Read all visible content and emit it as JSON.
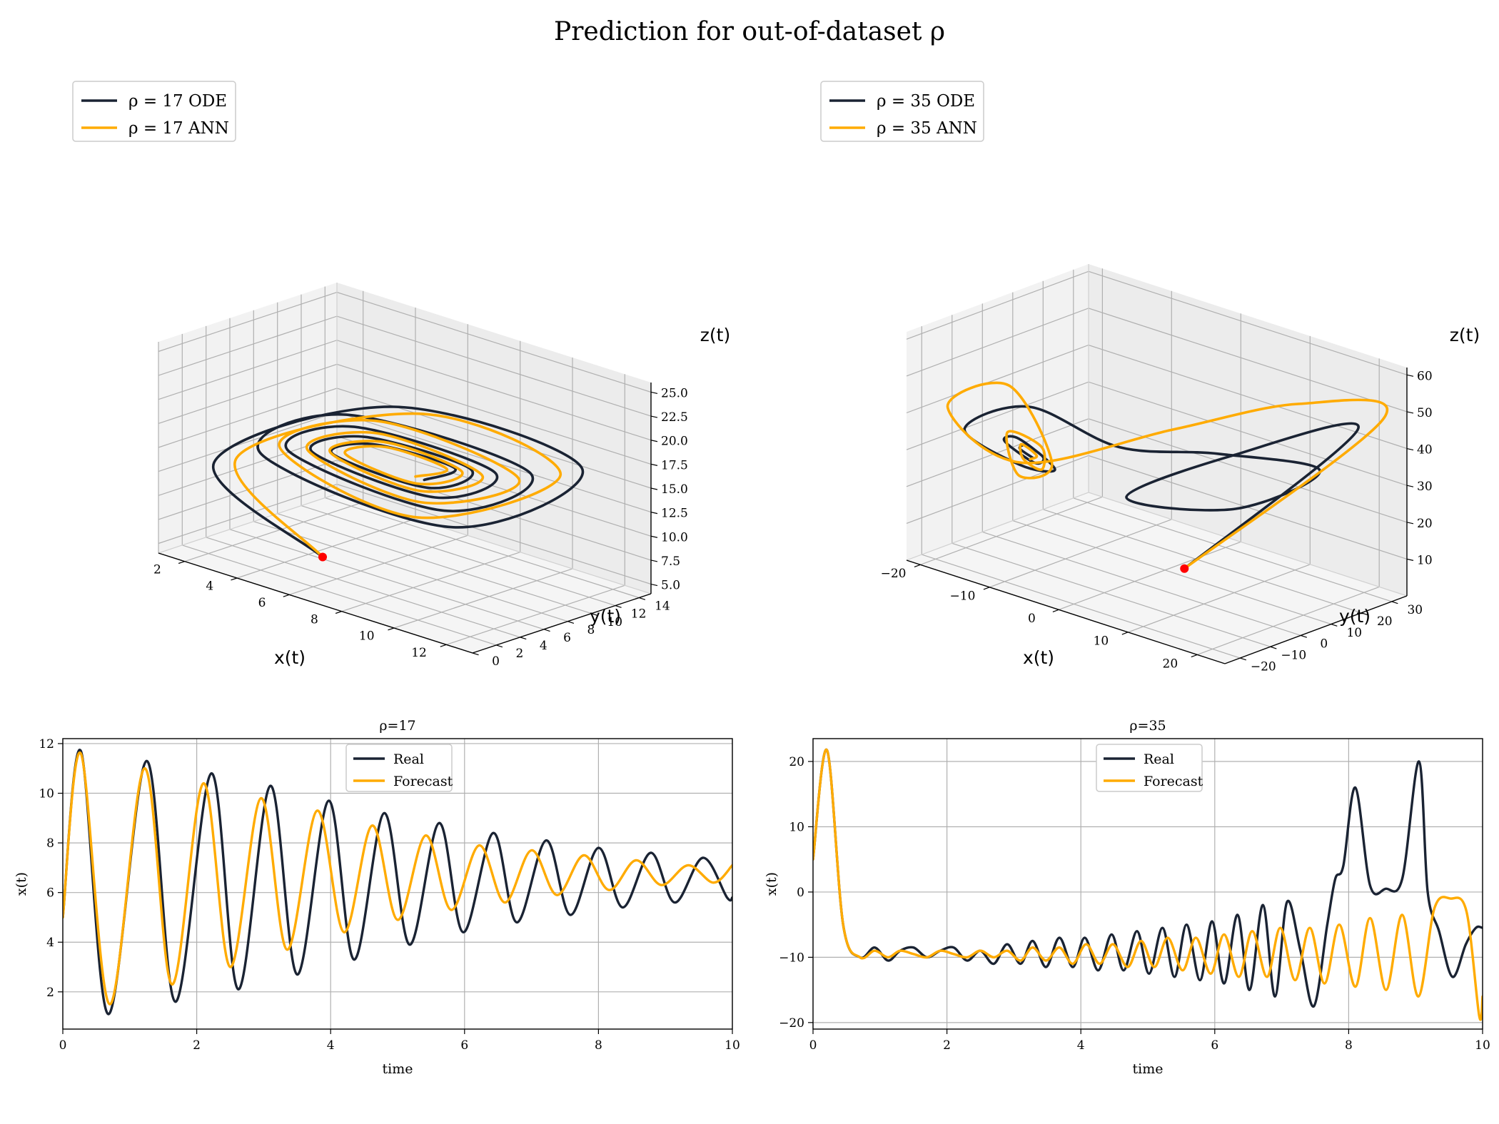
{
  "figure_title": "Prediction for out-of-dataset ρ",
  "colors": {
    "ode": "#1a2333",
    "ann": "#ffab00",
    "start_point": "#ff0000",
    "grid": "#b0b0b0"
  },
  "chart_data": [
    {
      "type": "line3d",
      "panel": "top-left",
      "title": "",
      "legend": [
        "ρ = 17 ODE",
        "ρ = 17 ANN"
      ],
      "legend_position": "top-left",
      "xlabel": "x(t)",
      "ylabel": "y(t)",
      "zlabel": "z(t)",
      "x_ticks": [
        "2",
        "4",
        "6",
        "8",
        "10",
        "12"
      ],
      "y_ticks": [
        "0",
        "2",
        "4",
        "6",
        "8",
        "10",
        "12",
        "14"
      ],
      "z_ticks": [
        "5.0",
        "7.5",
        "10.0",
        "12.5",
        "15.0",
        "17.5",
        "20.0",
        "22.5",
        "25.0"
      ],
      "xlim": [
        1,
        13
      ],
      "ylim": [
        0,
        15
      ],
      "zlim": [
        4,
        26
      ],
      "initial_point": [
        5,
        5,
        5
      ],
      "series": [
        {
          "name": "ρ = 17 ODE",
          "x": [
            5.0,
            2.4,
            6.3,
            11.5,
            8.9,
            3.6,
            5.0,
            10.2,
            8.6,
            4.2,
            5.3,
            9.3,
            8.2,
            4.8,
            5.7,
            8.7,
            7.9,
            5.3,
            6.0,
            8.3,
            7.7
          ],
          "y": [
            5.0,
            1.6,
            8.1,
            12.5,
            7.4,
            2.9,
            7.0,
            11.0,
            7.3,
            3.9,
            7.0,
            10.0,
            7.4,
            4.6,
            7.0,
            9.3,
            7.5,
            5.2,
            7.0,
            8.8,
            7.6
          ],
          "z": [
            5.0,
            14.0,
            20.5,
            16.8,
            10.5,
            15.4,
            19.0,
            15.8,
            12.0,
            15.8,
            18.0,
            15.5,
            13.0,
            15.9,
            17.3,
            15.6,
            13.7,
            15.9,
            16.8,
            15.6,
            14.3
          ]
        },
        {
          "name": "ρ = 17 ANN",
          "x": [
            5.0,
            2.9,
            7.0,
            11.0,
            8.0,
            3.9,
            5.8,
            10.0,
            8.0,
            4.6,
            5.9,
            9.0,
            7.8,
            5.2,
            6.2,
            8.5,
            7.6,
            5.6,
            6.3,
            8.1,
            7.5
          ],
          "y": [
            5.0,
            2.4,
            9.0,
            11.8,
            6.3,
            3.8,
            8.0,
            10.5,
            6.7,
            4.6,
            7.6,
            9.6,
            7.0,
            5.2,
            7.5,
            9.0,
            7.2,
            5.6,
            7.4,
            8.6,
            7.3
          ],
          "z": [
            5.0,
            14.6,
            20.0,
            16.0,
            11.2,
            16.0,
            18.6,
            15.2,
            12.6,
            16.0,
            17.6,
            15.1,
            13.5,
            16.0,
            17.0,
            15.3,
            14.0,
            16.0,
            16.6,
            15.4,
            14.6
          ]
        }
      ]
    },
    {
      "type": "line3d",
      "panel": "top-right",
      "title": "",
      "legend": [
        "ρ = 35 ODE",
        "ρ = 35 ANN"
      ],
      "legend_position": "top-left",
      "xlabel": "x(t)",
      "ylabel": "y(t)",
      "zlabel": "z(t)",
      "x_ticks": [
        "−20",
        "−10",
        "0",
        "10",
        "20"
      ],
      "y_ticks": [
        "−20",
        "−10",
        "0",
        "10",
        "20",
        "30"
      ],
      "z_ticks": [
        "10",
        "20",
        "30",
        "40",
        "50",
        "60"
      ],
      "xlim": [
        -22,
        24
      ],
      "ylim": [
        -25,
        35
      ],
      "zlim": [
        0,
        62
      ],
      "initial_point": [
        5,
        5,
        5
      ],
      "series": [
        {
          "name": "ρ = 35 ODE",
          "x": [
            5.0,
            20.0,
            12.0,
            1.0,
            8.0,
            18.0,
            12.0,
            0.0,
            -10.0,
            -18.0,
            -14.0,
            -8.0,
            -11.0,
            -14.0,
            -11.0,
            -9.0,
            -10.5,
            -12.0,
            -10.5
          ],
          "y": [
            5.0,
            28.0,
            5.0,
            -5.0,
            15.0,
            20.0,
            0.0,
            -5.0,
            -12.0,
            -15.0,
            -6.0,
            -8.0,
            -13.0,
            -11.0,
            -8.0,
            -9.5,
            -11.5,
            -10.5,
            -9.5
          ],
          "z": [
            5.0,
            45.0,
            40.0,
            25.0,
            20.0,
            35.0,
            42.0,
            38.0,
            45.0,
            35.0,
            25.0,
            28.0,
            36.0,
            33.0,
            28.0,
            31.0,
            34.0,
            32.0,
            30.0
          ]
        },
        {
          "name": "ρ = 35 ANN",
          "x": [
            5.0,
            22.0,
            14.0,
            2.0,
            -12.0,
            -20.0,
            -16.0,
            -8.0,
            -11.0,
            -14.0,
            -10.0,
            -9.0,
            -11.0,
            -12.0,
            -10.0,
            -10.5
          ],
          "y": [
            5.0,
            32.0,
            22.0,
            8.0,
            -10.0,
            -16.0,
            -5.0,
            -9.0,
            -13.0,
            -10.0,
            -8.0,
            -10.0,
            -11.5,
            -10.0,
            -9.5,
            -10.5
          ],
          "z": [
            5.0,
            48.0,
            50.0,
            40.0,
            28.0,
            40.0,
            45.0,
            30.0,
            26.0,
            35.0,
            33.0,
            28.0,
            30.0,
            33.0,
            31.0,
            30.0
          ]
        }
      ]
    },
    {
      "type": "line",
      "panel": "bottom-left",
      "title": "ρ=17",
      "xlabel": "time",
      "ylabel": "x(t)",
      "xlim": [
        0,
        10
      ],
      "ylim": [
        0.5,
        12.2
      ],
      "x_ticks": [
        "0",
        "2",
        "4",
        "6",
        "8",
        "10"
      ],
      "y_ticks": [
        "2",
        "4",
        "6",
        "8",
        "10",
        "12"
      ],
      "legend": [
        "Real",
        "Forecast"
      ],
      "legend_position": "upper center",
      "grid": true,
      "series": [
        {
          "name": "Real",
          "x": [
            0,
            0.27,
            0.68,
            1.25,
            1.68,
            2.22,
            2.62,
            3.1,
            3.5,
            3.97,
            4.35,
            4.8,
            5.18,
            5.62,
            5.98,
            6.43,
            6.78,
            7.22,
            7.58,
            8.0,
            8.36,
            8.78,
            9.14,
            9.56,
            9.92,
            10.0
          ],
          "y": [
            5.0,
            11.7,
            1.1,
            11.3,
            1.6,
            10.8,
            2.1,
            10.3,
            2.7,
            9.7,
            3.3,
            9.2,
            3.9,
            8.8,
            4.4,
            8.4,
            4.8,
            8.1,
            5.1,
            7.8,
            5.4,
            7.6,
            5.6,
            7.4,
            5.8,
            5.8
          ]
        },
        {
          "name": "Forecast",
          "x": [
            0,
            0.27,
            0.7,
            1.22,
            1.63,
            2.1,
            2.5,
            2.96,
            3.35,
            3.8,
            4.2,
            4.62,
            5.0,
            5.42,
            5.8,
            6.22,
            6.6,
            7.0,
            7.38,
            7.78,
            8.16,
            8.56,
            8.94,
            9.34,
            9.72,
            10.0
          ],
          "y": [
            5.0,
            11.6,
            1.5,
            11.0,
            2.3,
            10.4,
            3.0,
            9.8,
            3.7,
            9.3,
            4.4,
            8.7,
            4.9,
            8.3,
            5.3,
            7.9,
            5.6,
            7.7,
            5.9,
            7.5,
            6.1,
            7.3,
            6.3,
            7.1,
            6.4,
            7.1
          ]
        }
      ]
    },
    {
      "type": "line",
      "panel": "bottom-right",
      "title": "ρ=35",
      "xlabel": "time",
      "ylabel": "x(t)",
      "xlim": [
        0,
        10
      ],
      "ylim": [
        -21,
        23.5
      ],
      "x_ticks": [
        "0",
        "2",
        "4",
        "6",
        "8",
        "10"
      ],
      "y_ticks": [
        "−20",
        "−10",
        "0",
        "10",
        "20"
      ],
      "legend": [
        "Real",
        "Forecast"
      ],
      "legend_position": "upper center",
      "grid": true,
      "series": [
        {
          "name": "Real",
          "x": [
            0,
            0.21,
            0.45,
            0.7,
            0.92,
            1.12,
            1.3,
            1.5,
            1.7,
            1.9,
            2.1,
            2.3,
            2.5,
            2.7,
            2.9,
            3.1,
            3.28,
            3.48,
            3.68,
            3.88,
            4.06,
            4.26,
            4.46,
            4.64,
            4.84,
            5.02,
            5.22,
            5.4,
            5.58,
            5.78,
            5.96,
            6.14,
            6.34,
            6.52,
            6.72,
            6.9,
            7.08,
            7.28,
            7.48,
            7.68,
            7.8,
            7.92,
            8.1,
            8.32,
            8.55,
            8.8,
            9.05,
            9.18,
            9.35,
            9.55,
            9.75,
            9.9,
            10.0
          ],
          "y": [
            5.0,
            21.7,
            -5.0,
            -10.0,
            -8.5,
            -10.5,
            -9.0,
            -8.5,
            -10.0,
            -9.0,
            -8.5,
            -10.5,
            -9.0,
            -11.0,
            -8.0,
            -11.0,
            -7.5,
            -11.5,
            -7.0,
            -11.5,
            -7.0,
            -12.0,
            -6.5,
            -12.0,
            -6.0,
            -12.5,
            -5.5,
            -13.0,
            -5.0,
            -13.5,
            -4.5,
            -14.0,
            -3.5,
            -15.0,
            -2.0,
            -16.0,
            -1.5,
            -9.0,
            -17.5,
            -5.0,
            2.0,
            4.0,
            16.0,
            1.0,
            0.5,
            2.0,
            20.0,
            0.0,
            -6.0,
            -13.0,
            -8.0,
            -5.5,
            -5.5
          ]
        },
        {
          "name": "Forecast",
          "x": [
            0,
            0.21,
            0.45,
            0.7,
            0.92,
            1.12,
            1.3,
            1.5,
            1.7,
            1.9,
            2.1,
            2.3,
            2.5,
            2.7,
            2.9,
            3.1,
            3.28,
            3.48,
            3.68,
            3.88,
            4.08,
            4.28,
            4.48,
            4.7,
            4.9,
            5.1,
            5.3,
            5.52,
            5.72,
            5.94,
            6.14,
            6.36,
            6.56,
            6.78,
            6.98,
            7.2,
            7.42,
            7.64,
            7.86,
            8.1,
            8.32,
            8.56,
            8.8,
            9.04,
            9.28,
            9.52,
            9.76,
            9.95,
            10.0
          ],
          "y": [
            5.0,
            21.7,
            -5.0,
            -10.0,
            -9.0,
            -10.0,
            -9.0,
            -9.5,
            -10.0,
            -9.0,
            -9.5,
            -10.0,
            -9.0,
            -10.0,
            -9.0,
            -10.5,
            -8.5,
            -10.5,
            -8.5,
            -11.0,
            -8.0,
            -11.0,
            -8.0,
            -11.5,
            -7.5,
            -11.5,
            -7.0,
            -12.0,
            -7.0,
            -12.5,
            -6.5,
            -13.0,
            -6.0,
            -13.0,
            -5.5,
            -13.5,
            -5.5,
            -14.0,
            -5.0,
            -14.5,
            -4.0,
            -15.0,
            -3.5,
            -16.0,
            -2.5,
            -1.0,
            -3.0,
            -19.0,
            -16.0
          ]
        }
      ]
    }
  ]
}
